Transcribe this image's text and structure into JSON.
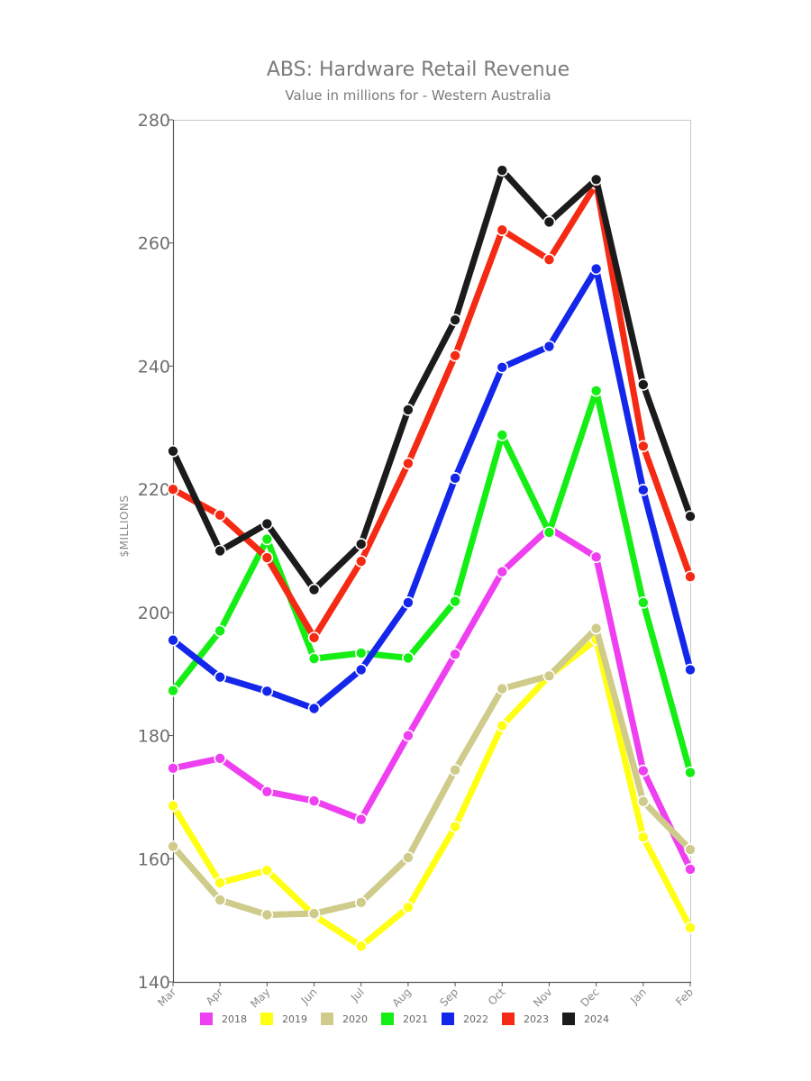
{
  "chart_data": {
    "type": "line",
    "title": "ABS: Hardware Retail Revenue",
    "subtitle": "Value in millions for - Western Australia",
    "ylabel": "$MILLIONS",
    "xlabel": "",
    "ylim": [
      140,
      280
    ],
    "yticks": [
      140,
      160,
      180,
      200,
      220,
      240,
      260,
      280
    ],
    "categories": [
      "Mar",
      "Apr",
      "May",
      "Jun",
      "Jul",
      "Aug",
      "Sep",
      "Oct",
      "Nov",
      "Dec",
      "Jan",
      "Feb"
    ],
    "grid": false,
    "legend": "bottom",
    "series": [
      {
        "name": "2018",
        "color": "#ee3ff0",
        "values": [
          174.7,
          176.3,
          170.9,
          169.4,
          166.4,
          180.0,
          193.2,
          206.6,
          213.7,
          209.0,
          174.3,
          158.3
        ]
      },
      {
        "name": "2019",
        "color": "#ffff14",
        "values": [
          168.6,
          156.1,
          158.1,
          150.8,
          145.8,
          152.1,
          165.2,
          181.6,
          189.7,
          195.6,
          163.5,
          148.8
        ]
      },
      {
        "name": "2020",
        "color": "#cfcb8a",
        "values": [
          162.0,
          153.3,
          150.9,
          151.1,
          152.9,
          160.2,
          174.4,
          187.6,
          189.7,
          197.4,
          169.3,
          161.5
        ]
      },
      {
        "name": "2021",
        "color": "#14ee14",
        "values": [
          187.3,
          197.0,
          211.9,
          192.5,
          193.4,
          192.6,
          201.8,
          228.8,
          213.0,
          236.0,
          201.6,
          174.0
        ]
      },
      {
        "name": "2022",
        "color": "#1426ea",
        "values": [
          195.5,
          189.5,
          187.2,
          184.4,
          190.7,
          201.6,
          221.8,
          239.8,
          243.2,
          255.8,
          219.9,
          190.7
        ]
      },
      {
        "name": "2023",
        "color": "#f52a14",
        "values": [
          220.0,
          215.8,
          208.9,
          195.9,
          208.3,
          224.2,
          241.7,
          262.1,
          257.3,
          269.6,
          227.0,
          205.8
        ]
      },
      {
        "name": "2024",
        "color": "#1b1b1b",
        "values": [
          226.2,
          210.0,
          214.4,
          203.7,
          211.1,
          232.9,
          247.5,
          271.8,
          263.4,
          270.3,
          237.0,
          215.6
        ]
      }
    ]
  }
}
